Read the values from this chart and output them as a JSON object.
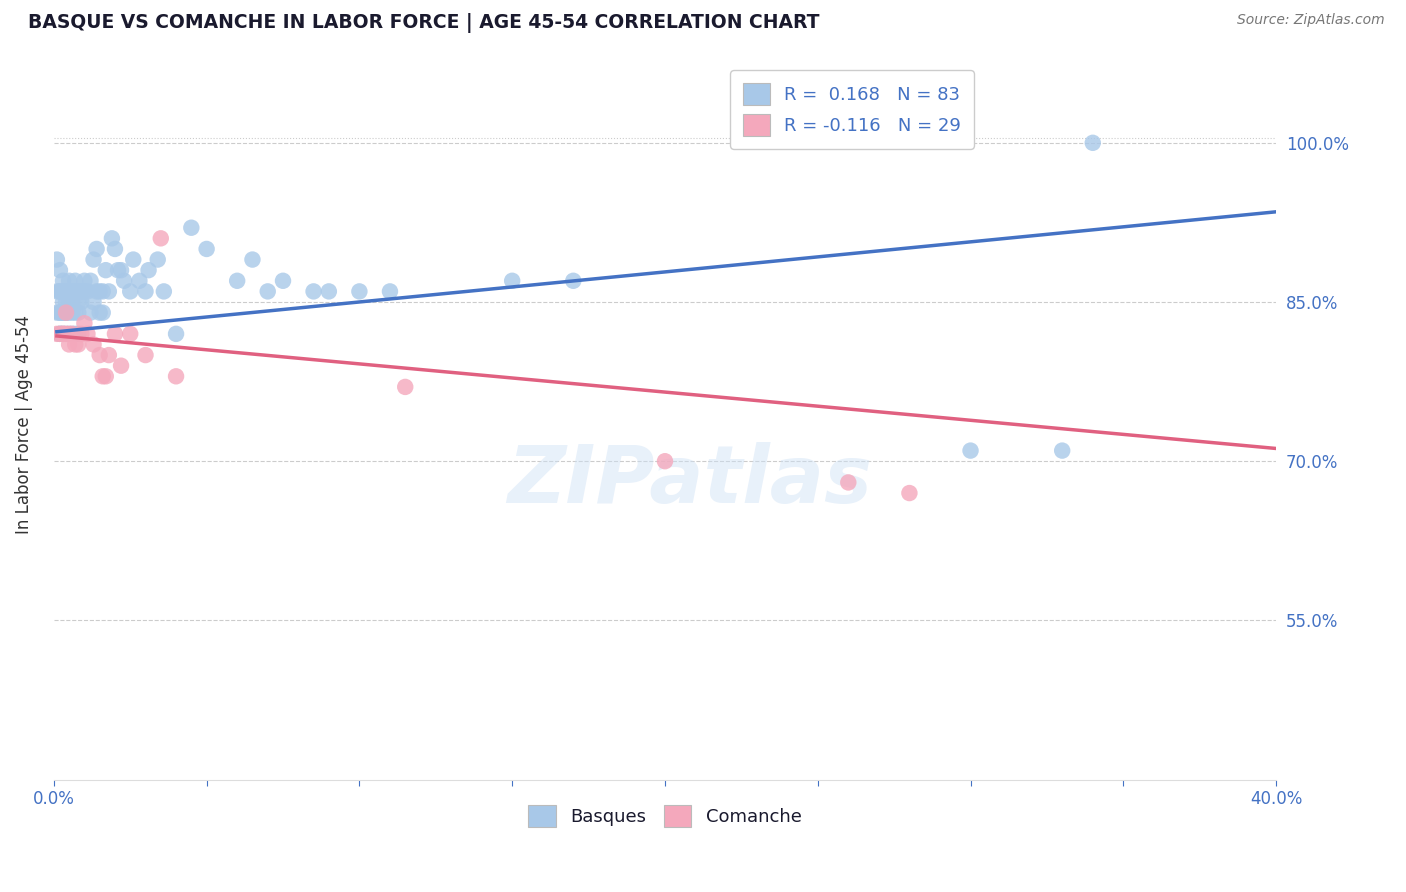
{
  "title": "BASQUE VS COMANCHE IN LABOR FORCE | AGE 45-54 CORRELATION CHART",
  "source": "Source: ZipAtlas.com",
  "ylabel": "In Labor Force | Age 45-54",
  "xlim": [
    0.0,
    0.4
  ],
  "ylim": [
    0.4,
    1.07
  ],
  "yticks": [
    0.55,
    0.7,
    0.85,
    1.0
  ],
  "ytick_labels": [
    "55.0%",
    "70.0%",
    "85.0%",
    "100.0%"
  ],
  "xticks": [
    0.0,
    0.05,
    0.1,
    0.15,
    0.2,
    0.25,
    0.3,
    0.35,
    0.4
  ],
  "xtick_labels": [
    "0.0%",
    "",
    "",
    "",
    "",
    "",
    "",
    "",
    "40.0%"
  ],
  "basques_color": "#a8c8e8",
  "comanche_color": "#f4a8bc",
  "blue_line_color": "#4472c4",
  "pink_line_color": "#e06080",
  "R_basques": 0.168,
  "N_basques": 83,
  "R_comanche": -0.116,
  "N_comanche": 29,
  "legend_label_basques": "Basques",
  "legend_label_comanche": "Comanche",
  "blue_line_x0": 0.001,
  "blue_line_y0": 0.822,
  "blue_line_x1": 0.4,
  "blue_line_y1": 0.935,
  "pink_line_x0": 0.001,
  "pink_line_y0": 0.818,
  "pink_line_x1": 0.4,
  "pink_line_y1": 0.712,
  "basques_x": [
    0.001,
    0.001,
    0.001,
    0.002,
    0.002,
    0.002,
    0.002,
    0.002,
    0.002,
    0.003,
    0.003,
    0.003,
    0.003,
    0.003,
    0.004,
    0.004,
    0.004,
    0.004,
    0.005,
    0.005,
    0.005,
    0.005,
    0.006,
    0.006,
    0.006,
    0.007,
    0.007,
    0.007,
    0.008,
    0.008,
    0.008,
    0.009,
    0.009,
    0.01,
    0.01,
    0.011,
    0.012,
    0.012,
    0.013,
    0.013,
    0.014,
    0.014,
    0.015,
    0.015,
    0.016,
    0.016,
    0.017,
    0.018,
    0.019,
    0.02,
    0.021,
    0.022,
    0.023,
    0.025,
    0.026,
    0.028,
    0.03,
    0.031,
    0.034,
    0.036,
    0.04,
    0.045,
    0.05,
    0.06,
    0.065,
    0.07,
    0.075,
    0.085,
    0.09,
    0.1,
    0.11,
    0.15,
    0.17,
    0.3,
    0.33,
    0.002,
    0.003,
    0.004,
    0.005,
    0.006,
    0.007,
    0.008,
    0.34
  ],
  "basques_y": [
    0.84,
    0.86,
    0.89,
    0.84,
    0.86,
    0.88,
    0.82,
    0.84,
    0.86,
    0.84,
    0.86,
    0.87,
    0.85,
    0.84,
    0.85,
    0.84,
    0.86,
    0.84,
    0.86,
    0.85,
    0.87,
    0.84,
    0.85,
    0.86,
    0.84,
    0.86,
    0.87,
    0.84,
    0.84,
    0.86,
    0.85,
    0.85,
    0.86,
    0.87,
    0.86,
    0.86,
    0.87,
    0.84,
    0.89,
    0.85,
    0.9,
    0.86,
    0.86,
    0.84,
    0.86,
    0.84,
    0.88,
    0.86,
    0.91,
    0.9,
    0.88,
    0.88,
    0.87,
    0.86,
    0.89,
    0.87,
    0.86,
    0.88,
    0.89,
    0.86,
    0.82,
    0.92,
    0.9,
    0.87,
    0.89,
    0.86,
    0.87,
    0.86,
    0.86,
    0.86,
    0.86,
    0.87,
    0.87,
    0.71,
    0.71,
    0.82,
    0.82,
    0.82,
    0.82,
    0.82,
    0.82,
    0.82,
    1.0
  ],
  "comanche_x": [
    0.001,
    0.002,
    0.003,
    0.003,
    0.004,
    0.004,
    0.005,
    0.005,
    0.006,
    0.007,
    0.008,
    0.009,
    0.01,
    0.011,
    0.013,
    0.015,
    0.016,
    0.017,
    0.018,
    0.02,
    0.022,
    0.025,
    0.03,
    0.035,
    0.04,
    0.115,
    0.2,
    0.26,
    0.28
  ],
  "comanche_y": [
    0.82,
    0.82,
    0.82,
    0.82,
    0.84,
    0.82,
    0.82,
    0.81,
    0.82,
    0.81,
    0.81,
    0.82,
    0.83,
    0.82,
    0.81,
    0.8,
    0.78,
    0.78,
    0.8,
    0.82,
    0.79,
    0.82,
    0.8,
    0.91,
    0.78,
    0.77,
    0.7,
    0.68,
    0.67
  ],
  "watermark": "ZIPatlas",
  "title_color": "#1a1a2e",
  "axis_label_color": "#333333",
  "tick_color": "#4472c4",
  "grid_color": "#cccccc",
  "source_color": "#777777"
}
